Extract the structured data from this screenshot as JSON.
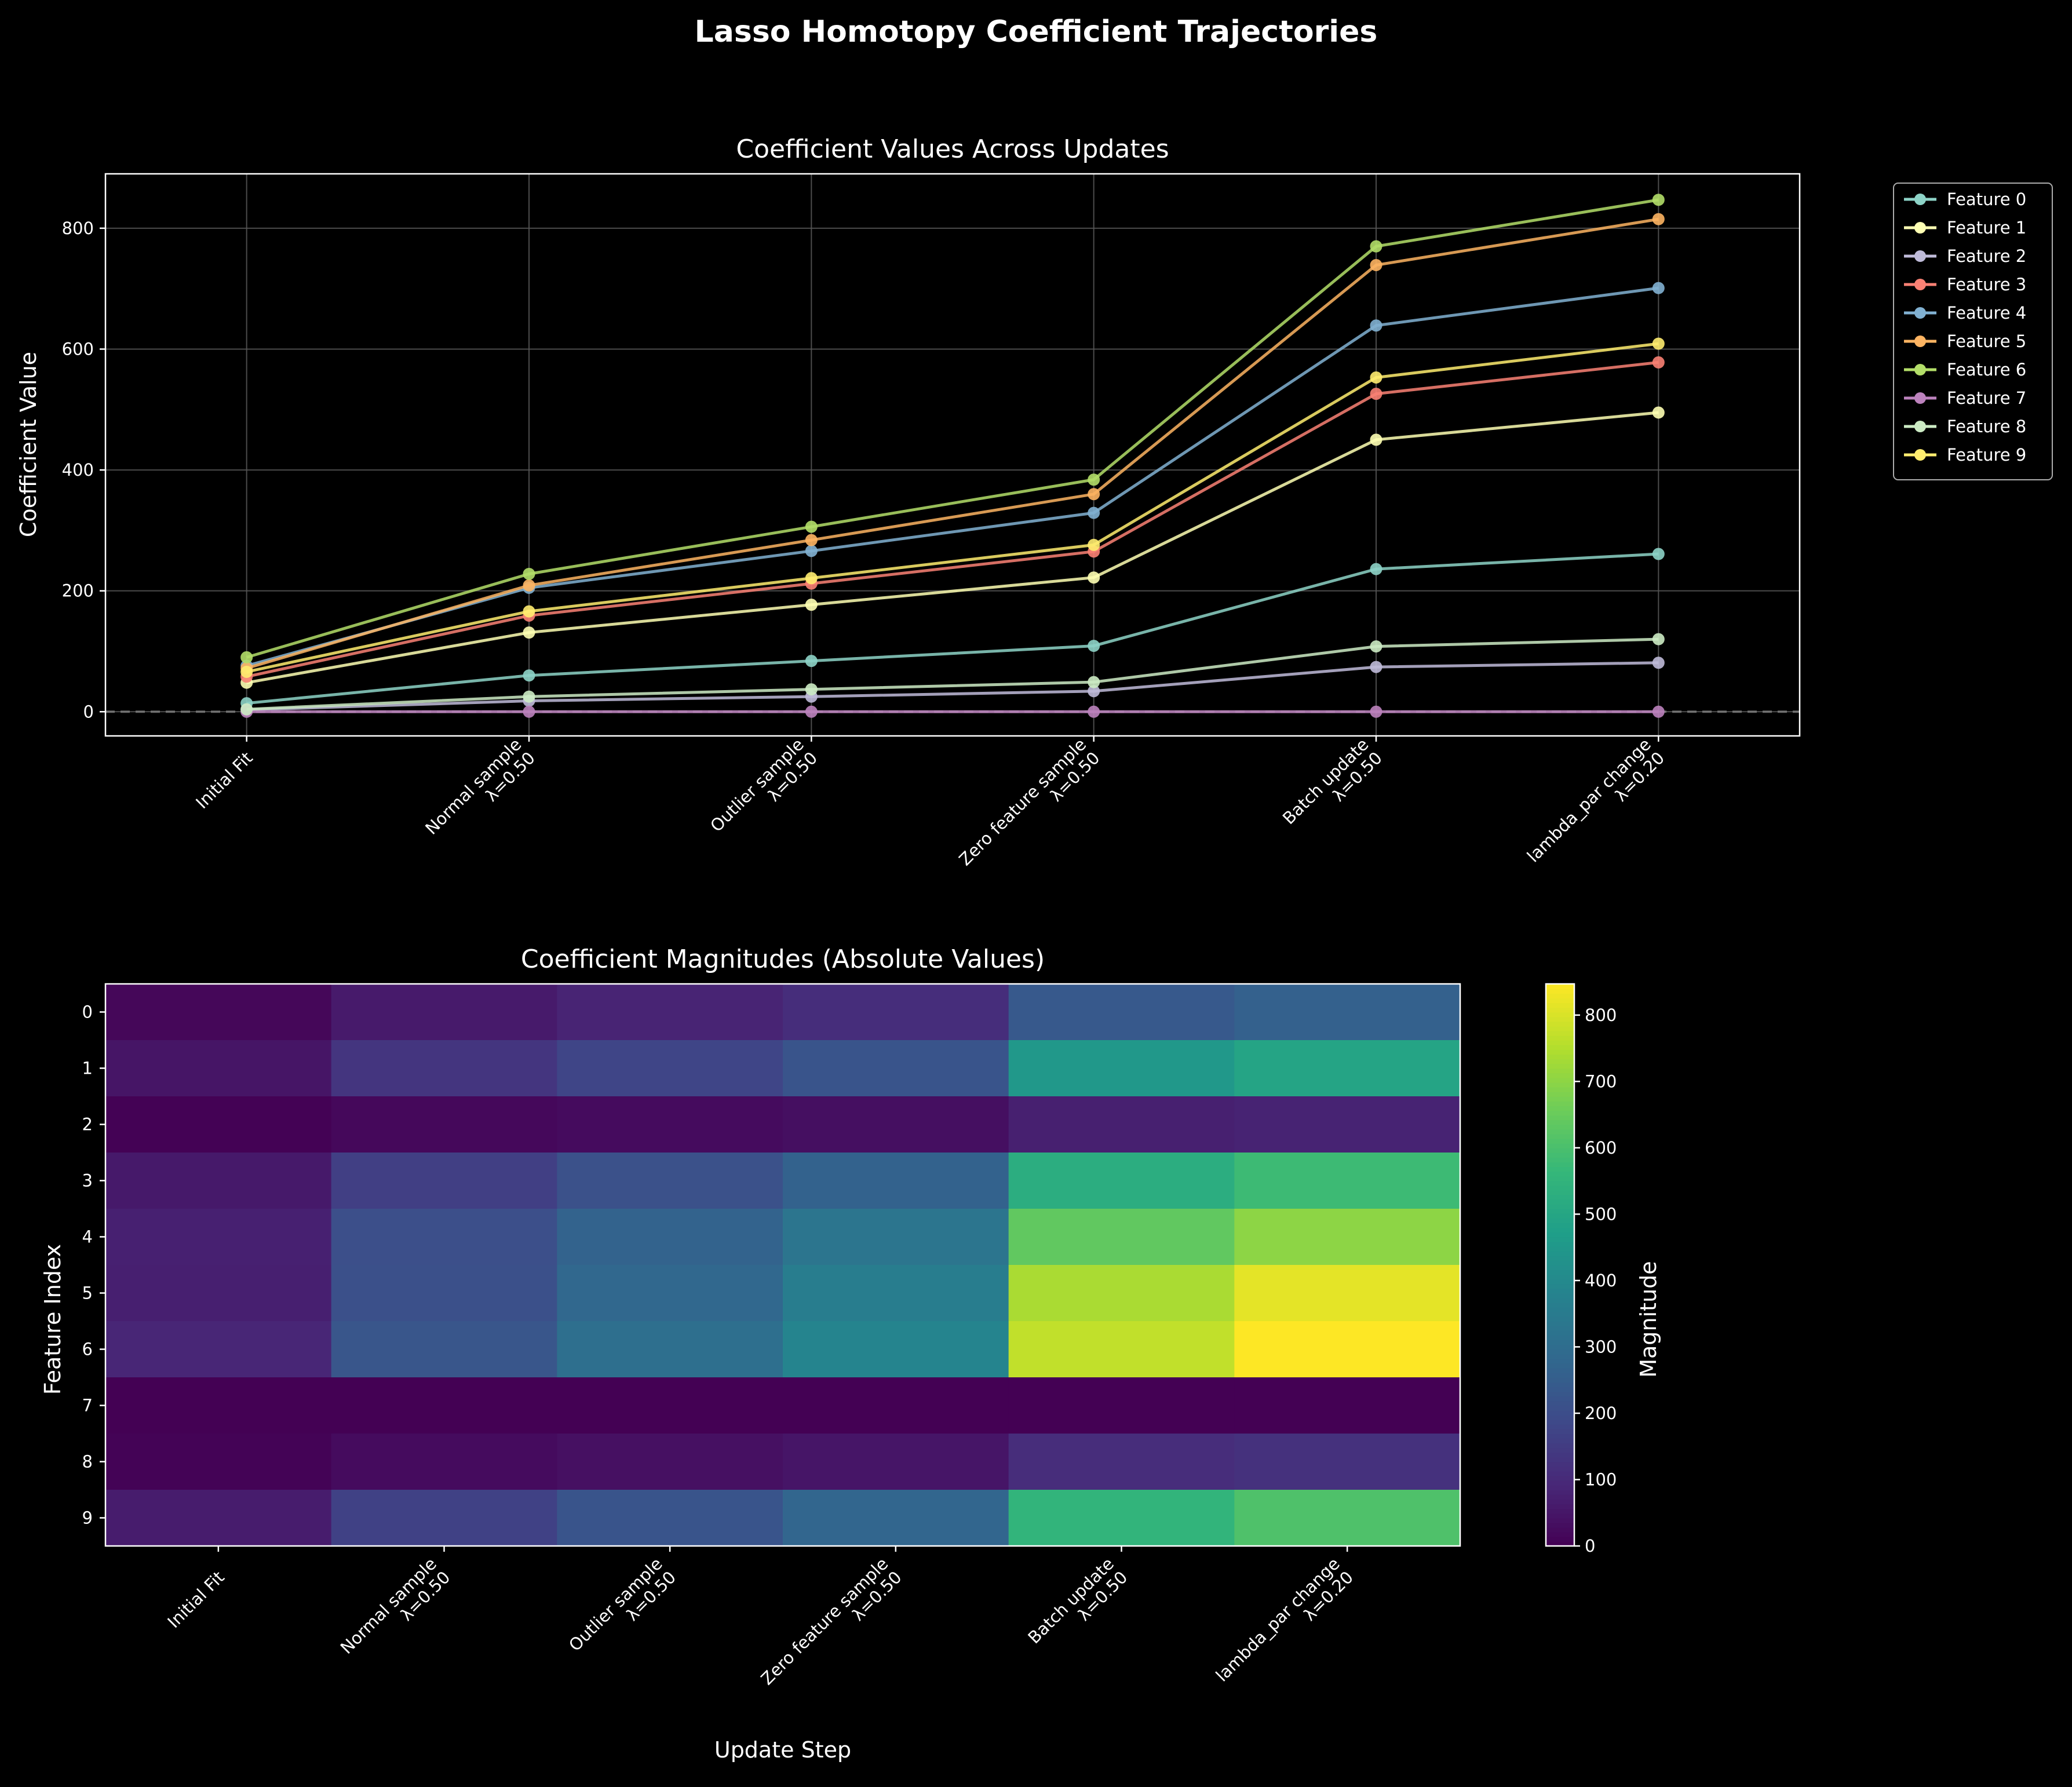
{
  "figure_title": "Lasso Homotopy Coefficient Trajectories",
  "colors": {
    "background": "#000000",
    "foreground": "#ffffff",
    "grid": "#555555",
    "series": [
      "#8dd3c7",
      "#feffb3",
      "#bfbbd9",
      "#fa8174",
      "#81b1d2",
      "#fdb462",
      "#b3de69",
      "#bc82bd",
      "#ccebc4",
      "#ffed6f"
    ],
    "colormap": "viridis"
  },
  "chart_data": [
    {
      "type": "line",
      "title": "Coefficient Values Across Updates",
      "xlabel": "",
      "ylabel": "Coefficient Value",
      "categories": [
        [
          "Initial Fit"
        ],
        [
          "Normal sample",
          "λ=0.50"
        ],
        [
          "Outlier sample",
          "λ=0.50"
        ],
        [
          "Zero feature sample",
          "λ=0.50"
        ],
        [
          "Batch update",
          "λ=0.50"
        ],
        [
          "lambda_par change",
          "λ=0.20"
        ]
      ],
      "ylim": [
        -40,
        890
      ],
      "yticks": [
        0,
        200,
        400,
        600,
        800
      ],
      "grid": true,
      "zero_line": true,
      "legend_position": "outside-right",
      "series": [
        {
          "name": "Feature 0",
          "values": [
            14,
            60,
            84,
            109,
            236,
            261
          ]
        },
        {
          "name": "Feature 1",
          "values": [
            48,
            131,
            177,
            222,
            450,
            495
          ]
        },
        {
          "name": "Feature 2",
          "values": [
            3,
            18,
            25,
            34,
            74,
            81
          ]
        },
        {
          "name": "Feature 3",
          "values": [
            58,
            159,
            212,
            265,
            526,
            578
          ]
        },
        {
          "name": "Feature 4",
          "values": [
            76,
            205,
            266,
            329,
            639,
            701
          ]
        },
        {
          "name": "Feature 5",
          "values": [
            72,
            209,
            284,
            360,
            739,
            815
          ]
        },
        {
          "name": "Feature 6",
          "values": [
            90,
            228,
            306,
            384,
            770,
            847
          ]
        },
        {
          "name": "Feature 7",
          "values": [
            0,
            0,
            0,
            0,
            0,
            0
          ]
        },
        {
          "name": "Feature 8",
          "values": [
            4,
            25,
            37,
            49,
            108,
            120
          ]
        },
        {
          "name": "Feature 9",
          "values": [
            66,
            166,
            221,
            276,
            553,
            609
          ]
        }
      ]
    },
    {
      "type": "heatmap",
      "title": "Coefficient Magnitudes (Absolute Values)",
      "xlabel": "Update Step",
      "ylabel": "Feature Index",
      "colorbar_label": "Magnitude",
      "colorbar_range": [
        0,
        847
      ],
      "colorbar_ticks": [
        0,
        100,
        200,
        300,
        400,
        500,
        600,
        700,
        800
      ],
      "rows": [
        "0",
        "1",
        "2",
        "3",
        "4",
        "5",
        "6",
        "7",
        "8",
        "9"
      ],
      "columns": [
        [
          "Initial Fit"
        ],
        [
          "Normal sample",
          "λ=0.50"
        ],
        [
          "Outlier sample",
          "λ=0.50"
        ],
        [
          "Zero feature sample",
          "λ=0.50"
        ],
        [
          "Batch update",
          "λ=0.50"
        ],
        [
          "lambda_par change",
          "λ=0.20"
        ]
      ]
    }
  ]
}
